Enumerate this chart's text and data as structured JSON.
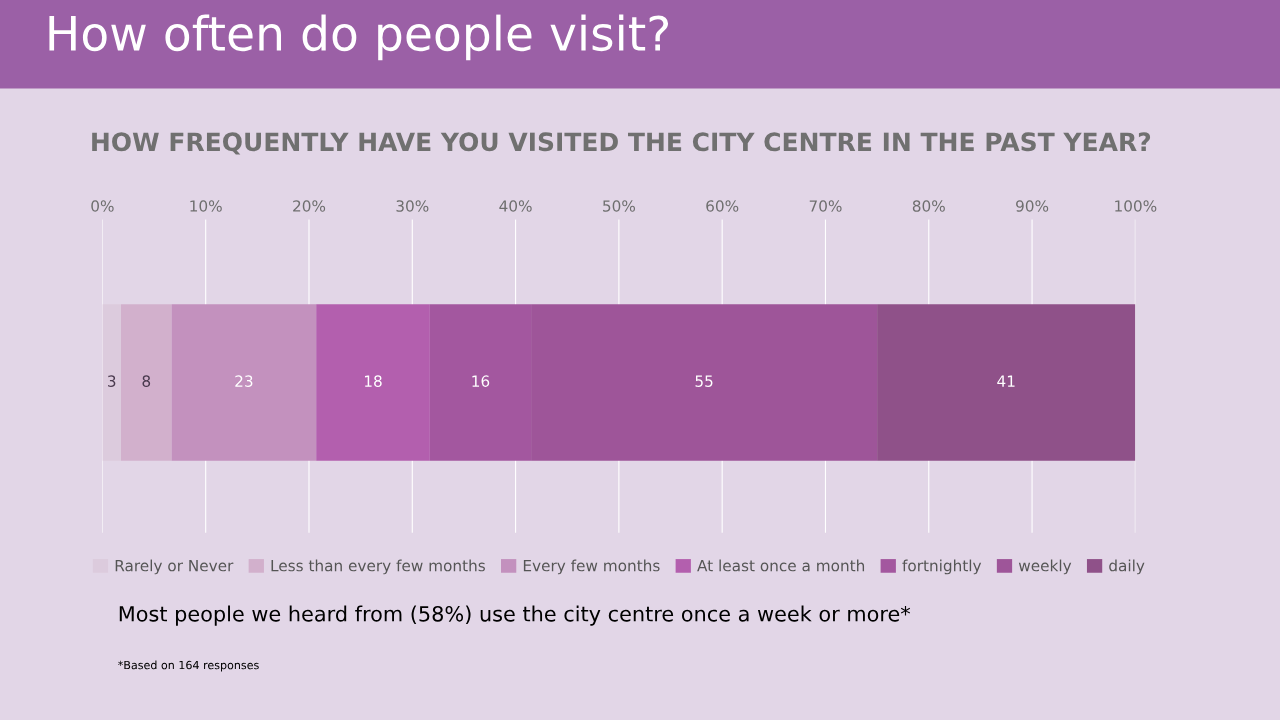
{
  "chart_data": {
    "type": "bar",
    "title": "How often do people visit?",
    "subtitle": "HOW FREQUENTLY HAVE YOU VISITED THE CITY CENTRE IN THE PAST YEAR?",
    "orientation": "horizontal",
    "stacked": true,
    "categories": [
      null
    ],
    "series": [
      {
        "name": "Rarely or Never",
        "color": "#dccbdd",
        "values": [
          1.8
        ]
      },
      {
        "name": "Less than every few months",
        "color": "#d2b0cc",
        "values": [
          4.9
        ]
      },
      {
        "name": "Every few months",
        "color": "#c391be",
        "values": [
          14.0
        ]
      },
      {
        "name": "At least once a month",
        "color": "#b35fae",
        "values": [
          11.0
        ]
      },
      {
        "name": "fortnightly",
        "color": "#a3579f",
        "values": [
          9.8
        ]
      },
      {
        "name": "weekly",
        "color": "#9e5599",
        "values": [
          33.5
        ]
      },
      {
        "name": "daily",
        "color": "#8f5189",
        "values": [
          25.0
        ]
      }
    ],
    "xlim": [
      0,
      100
    ],
    "xticks": [
      {
        "value": 0,
        "label": "0%"
      },
      {
        "value": 10,
        "label": "10%"
      },
      {
        "value": 20,
        "label": "20%"
      },
      {
        "value": 30,
        "label": "30%"
      },
      {
        "value": 40,
        "label": "40%"
      },
      {
        "value": 50,
        "label": "50%"
      },
      {
        "value": 60,
        "label": "60%"
      },
      {
        "value": 70,
        "label": "70%"
      },
      {
        "value": 80,
        "label": "80%"
      },
      {
        "value": 90,
        "label": "90%"
      },
      {
        "value": 100,
        "label": "100%"
      }
    ],
    "grid": "x",
    "legend": "bottom",
    "annotations": [
      "3",
      "8",
      "23",
      "18",
      "16",
      "55",
      "41",
      "Most people we heard from (58%) use the city centre once a week or more*",
      "*Based on 164 responses"
    ]
  }
}
